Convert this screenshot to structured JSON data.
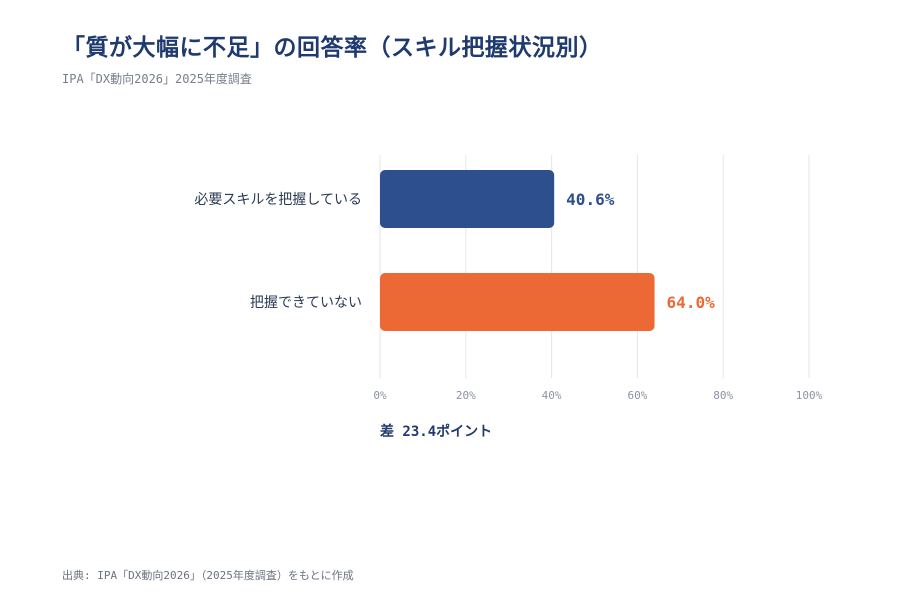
{
  "title": "「質が大幅に不足」の回答率（スキル把握状況別）",
  "subtitle": "IPA「DX動向2026」2025年度調査",
  "difference_label": "差 23.4ポイント",
  "source": "出典: IPA「DX動向2026」（2025年度調査）をもとに作成",
  "chart_data": {
    "type": "bar",
    "orientation": "horizontal",
    "categories": [
      "必要スキルを把握している",
      "把握できていない"
    ],
    "values": [
      40.6,
      64.0
    ],
    "value_labels": [
      "40.6%",
      "64.0%"
    ],
    "colors": [
      "#2d4f8e",
      "#ec6935"
    ],
    "xlim": [
      0,
      100
    ],
    "xticks": [
      0,
      20,
      40,
      60,
      80,
      100
    ],
    "xtick_labels": [
      "0%",
      "20%",
      "40%",
      "60%",
      "80%",
      "100%"
    ],
    "grid": true,
    "legend": "none"
  }
}
